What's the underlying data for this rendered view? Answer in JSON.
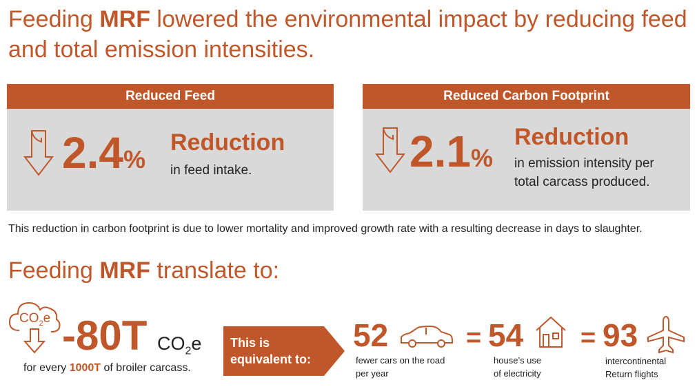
{
  "headline": {
    "part1": "Feeding ",
    "brand": "MRF",
    "part2": " lowered the environmental impact by reducing feed and total emission intensities."
  },
  "panels": {
    "feed": {
      "header": "Reduced Feed",
      "value": "2.4",
      "unit": "%",
      "label": "Reduction",
      "desc": "in feed intake."
    },
    "carbon": {
      "header": "Reduced Carbon Footprint",
      "value": "2.1",
      "unit": "%",
      "label": "Reduction",
      "desc_line1": "in emission intensity per",
      "desc_line2": "total carcass produced."
    }
  },
  "note": "This reduction in carbon footprint is due to lower mortality and improved growth rate with a resulting decrease in days to slaughter.",
  "translate": {
    "part1": "Feeding ",
    "brand": "MRF",
    "part2": " translate to:"
  },
  "co2": {
    "icon_text_main": "CO",
    "icon_text_sub": "2",
    "icon_text_e": "e",
    "value": "-80T",
    "unit_main": "CO",
    "unit_sub": "2",
    "unit_e": "e",
    "caption_pre": "for every ",
    "caption_bold": "1000T",
    "caption_post": " of broiler carcass."
  },
  "arrow": {
    "line1": "This is",
    "line2": "equivalent to:"
  },
  "equivalents": {
    "cars": {
      "value": "52",
      "line1": "fewer cars on the road",
      "line2": "per year"
    },
    "houses": {
      "eq": "=",
      "value": "54",
      "line1": "house’s use",
      "line2": "of electricity"
    },
    "flights": {
      "eq": "=",
      "value": "93",
      "line1": "intercontinental",
      "line2": "Return flights"
    }
  },
  "colors": {
    "accent": "#c0572a",
    "panel": "#d9d9d9"
  },
  "icons": [
    "down-arrow-icon",
    "co2-cloud-icon",
    "car-icon",
    "house-icon",
    "airplane-icon"
  ]
}
